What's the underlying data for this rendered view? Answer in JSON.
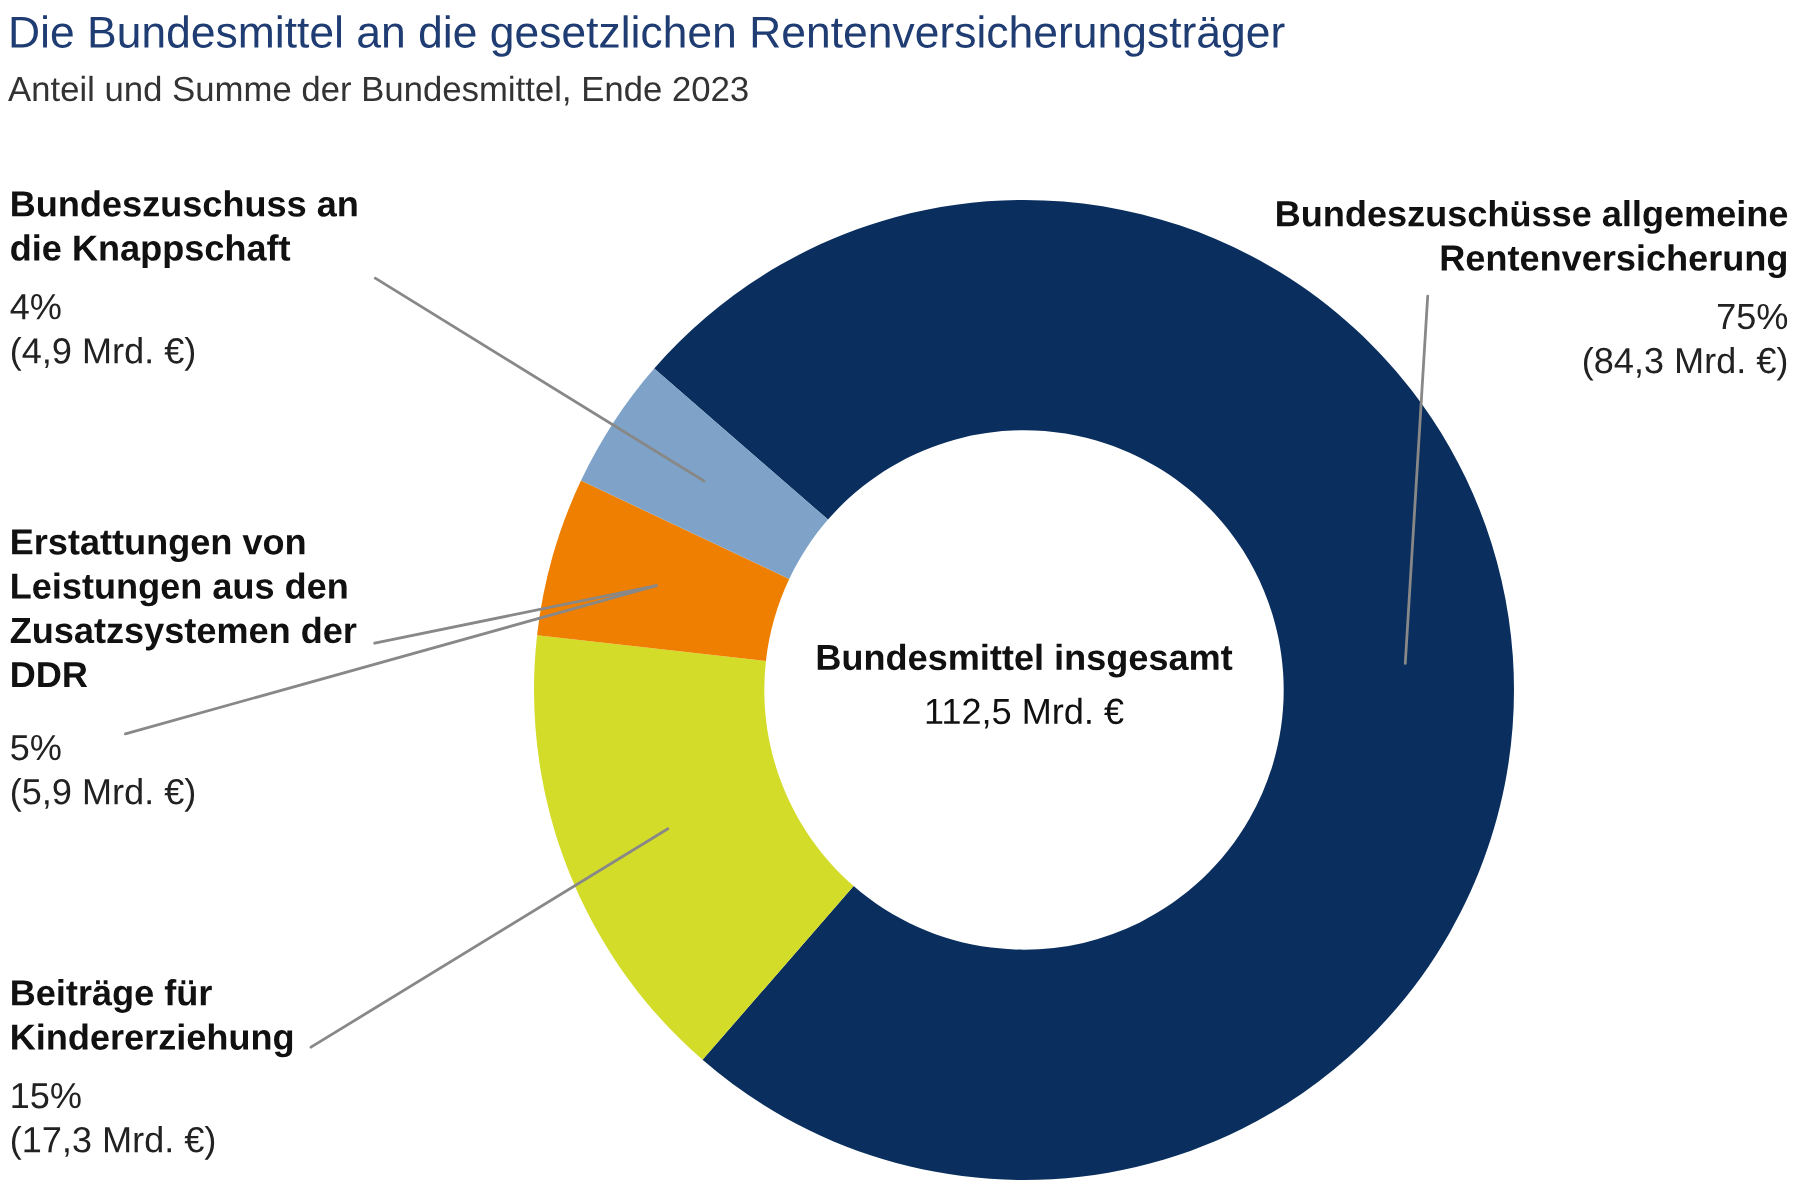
{
  "chart_data": {
    "type": "donut",
    "title": "Die Bundesmittel an die gesetzlichen Rentenversicherungsträger",
    "subtitle": "Anteil und Summe der Bundesmittel, Ende 2023",
    "categories": [
      "Bundeszuschüsse allgemeine\nRentenversicherung",
      "Beiträge für\nKindererziehung",
      "Erstattungen von\nLeistungen aus den\nZusatzsystemen der\nDDR",
      "Bundeszuschuss an\ndie Knappschaft"
    ],
    "values": [
      84.3,
      17.3,
      5.9,
      4.9
    ],
    "colors": [
      "#0a2f5f",
      "#d4dc2a",
      "#ee7f00",
      "#7fa3c8"
    ],
    "value_labels": [
      "75%\n(84,3 Mrd. €)",
      "15%\n(17,3 Mrd. €)",
      "5%\n(5,9 Mrd. €)",
      "4%\n(4,9 Mrd. €)"
    ],
    "annotations": [
      "Bundesmittel insgesamt",
      "112,5 Mrd. €"
    ],
    "legend": false
  }
}
